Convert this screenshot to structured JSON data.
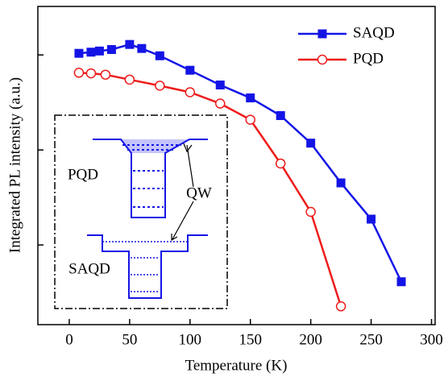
{
  "chart_data": {
    "type": "line",
    "x_label": "Temperature (K)",
    "y_label": "Integrated PL intensity (a.u.)",
    "log_y": true,
    "xlim": [
      -26,
      303
    ],
    "xticks": [
      0,
      50,
      100,
      150,
      200,
      250,
      300
    ],
    "ylim": [
      0.145,
      324
    ],
    "yticks": [
      1,
      10,
      100
    ],
    "legend": "upper right",
    "series": [
      {
        "name": "SAQD",
        "color": "#1414e6",
        "marker": "square",
        "x": [
          8,
          18,
          25,
          35,
          50,
          60,
          75,
          100,
          125,
          150,
          175,
          200,
          225,
          250,
          275
        ],
        "values": [
          104,
          107,
          110,
          114,
          129,
          117,
          98,
          69,
          48.3,
          35.3,
          23,
          11.8,
          4.5,
          1.87,
          0.41
        ]
      },
      {
        "name": "PQD",
        "color": "#ee1c1c",
        "marker": "circle-open",
        "x": [
          8,
          18,
          30,
          50,
          75,
          100,
          125,
          150,
          175,
          200,
          225
        ],
        "values": [
          65,
          64,
          62,
          55,
          47.5,
          40.5,
          30.8,
          20.8,
          7.2,
          2.23,
          0.226
        ]
      }
    ],
    "annotations": [
      "PQD",
      "QW",
      "SAQD"
    ]
  }
}
